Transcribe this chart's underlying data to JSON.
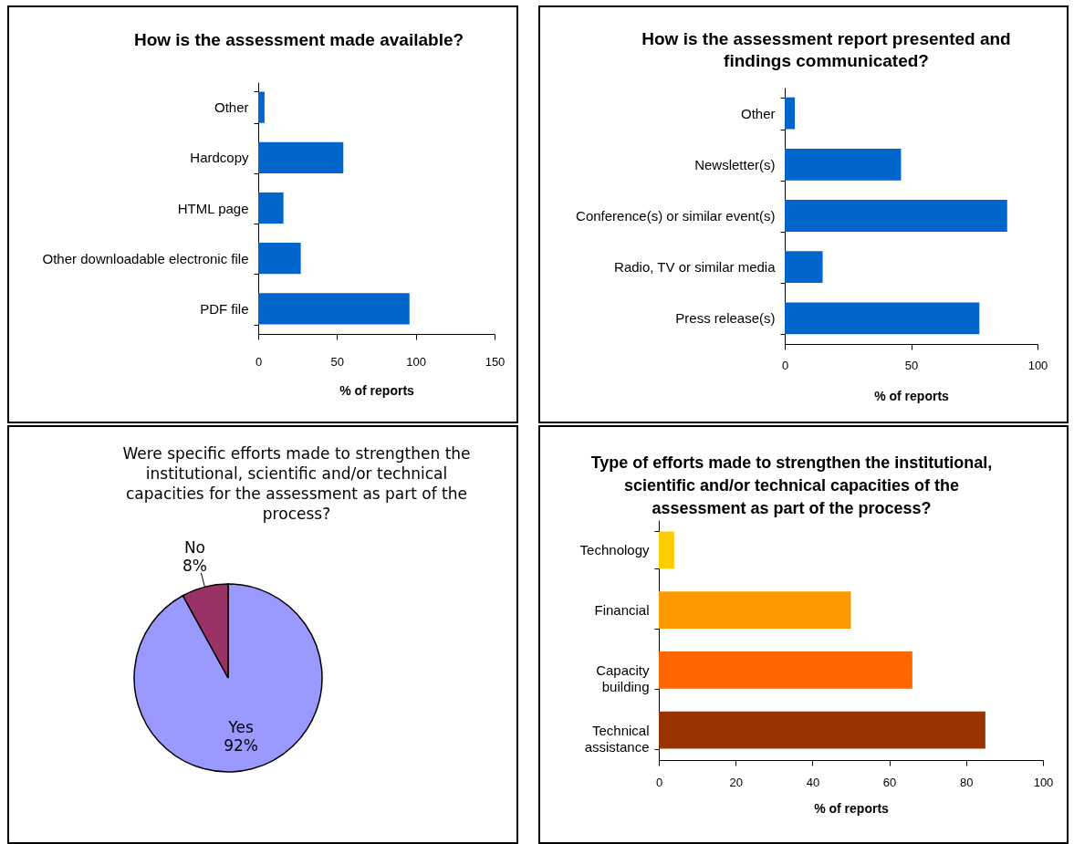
{
  "chart_data": [
    {
      "type": "bar",
      "orientation": "horizontal",
      "title": "How is the assessment made available?",
      "xlabel": "% of reports",
      "categories": [
        "Other",
        "Hardcopy",
        "HTML page",
        "Other downloadable electronic file",
        "PDF file"
      ],
      "values": [
        4,
        54,
        16,
        27,
        96
      ],
      "color": "#0066cc",
      "xlim": [
        0,
        150
      ],
      "xticks": [
        0,
        50,
        100,
        150
      ]
    },
    {
      "type": "bar",
      "orientation": "horizontal",
      "title": "How is the assessment report presented and findings communicated?",
      "xlabel": "% of reports",
      "categories": [
        "Other",
        "Newsletter(s)",
        "Conference(s) or similar event(s)",
        "Radio, TV or similar media",
        "Press release(s)"
      ],
      "values": [
        4,
        46,
        88,
        15,
        77
      ],
      "color": "#0066cc",
      "xlim": [
        0,
        100
      ],
      "xticks": [
        0,
        50,
        100
      ]
    },
    {
      "type": "pie",
      "title": "Were specific efforts made to strengthen the institutional, scientific and/or technical capacities for the assessment as part of the process?",
      "categories": [
        "Yes",
        "No"
      ],
      "values": [
        92,
        8
      ],
      "colors": [
        "#9999ff",
        "#993366"
      ],
      "value_labels": [
        "92%",
        "8%"
      ]
    },
    {
      "type": "bar",
      "orientation": "horizontal",
      "title": "Type of efforts made to strengthen the institutional, scientific and/or technical capacities of the assessment as part of the process?",
      "xlabel": "% of reports",
      "categories": [
        "Technology",
        "Financial",
        "Capacity building",
        "Technical assistance"
      ],
      "values": [
        4,
        50,
        66,
        85
      ],
      "colors": [
        "#ffcc00",
        "#ff9900",
        "#ff6600",
        "#993300"
      ],
      "xlim": [
        0,
        100
      ],
      "xticks": [
        0,
        20,
        40,
        60,
        80,
        100
      ]
    }
  ]
}
